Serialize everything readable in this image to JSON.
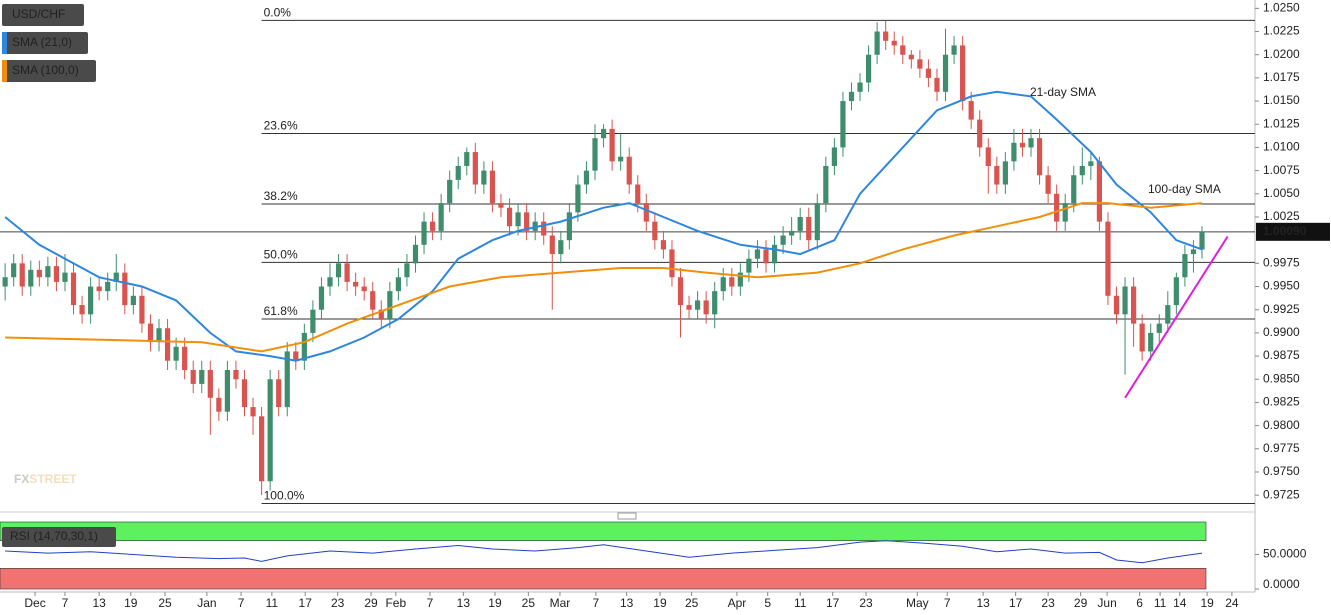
{
  "chart_data": {
    "type": "candlestick",
    "symbol": "USD/CHF",
    "up_color": "#3e8e6e",
    "down_color": "#d9534f",
    "xlim": [
      -0.6,
      146.2
    ],
    "ylim": [
      0.9709,
      1.0259
    ],
    "yticks": [
      {
        "value": 1.025,
        "label": "1.0250"
      },
      {
        "value": 1.0225,
        "label": "1.0225"
      },
      {
        "value": 1.02,
        "label": "1.0200"
      },
      {
        "value": 1.0175,
        "label": "1.0175"
      },
      {
        "value": 1.015,
        "label": "1.0150"
      },
      {
        "value": 1.0125,
        "label": "1.0125"
      },
      {
        "value": 1.01,
        "label": "1.0100"
      },
      {
        "value": 1.0075,
        "label": "1.0075"
      },
      {
        "value": 1.005,
        "label": "1.0050"
      },
      {
        "value": 1.0025,
        "label": "1.0025"
      },
      {
        "value": 0.9975,
        "label": "0.9975"
      },
      {
        "value": 0.995,
        "label": "0.9950"
      },
      {
        "value": 0.9925,
        "label": "0.9925"
      },
      {
        "value": 0.99,
        "label": "0.9900"
      },
      {
        "value": 0.9875,
        "label": "0.9875"
      },
      {
        "value": 0.985,
        "label": "0.9850"
      },
      {
        "value": 0.9825,
        "label": "0.9825"
      },
      {
        "value": 0.98,
        "label": "0.9800"
      },
      {
        "value": 0.9775,
        "label": "0.9775"
      },
      {
        "value": 0.975,
        "label": "0.9750"
      },
      {
        "value": 0.9725,
        "label": "0.9725"
      }
    ],
    "xticks": [
      {
        "value": 3.5,
        "label": "Dec"
      },
      {
        "value": 7,
        "label": "7"
      },
      {
        "value": 11,
        "label": "13"
      },
      {
        "value": 14.7,
        "label": "19"
      },
      {
        "value": 18.7,
        "label": "25"
      },
      {
        "value": 23.6,
        "label": "Jan"
      },
      {
        "value": 27.6,
        "label": "7"
      },
      {
        "value": 31.2,
        "label": "11"
      },
      {
        "value": 35.1,
        "label": "17"
      },
      {
        "value": 38.9,
        "label": "23"
      },
      {
        "value": 42.8,
        "label": "29"
      },
      {
        "value": 45.7,
        "label": "Feb"
      },
      {
        "value": 49.7,
        "label": "7"
      },
      {
        "value": 53.6,
        "label": "13"
      },
      {
        "value": 57.3,
        "label": "19"
      },
      {
        "value": 61.2,
        "label": "25"
      },
      {
        "value": 64.9,
        "label": "Mar"
      },
      {
        "value": 69.1,
        "label": "7"
      },
      {
        "value": 72.7,
        "label": "13"
      },
      {
        "value": 76.6,
        "label": "19"
      },
      {
        "value": 80.3,
        "label": "25"
      },
      {
        "value": 85.6,
        "label": "Apr"
      },
      {
        "value": 89.2,
        "label": "5"
      },
      {
        "value": 93,
        "label": "11"
      },
      {
        "value": 96.8,
        "label": "17"
      },
      {
        "value": 100.7,
        "label": "23"
      },
      {
        "value": 106.7,
        "label": "May"
      },
      {
        "value": 110.2,
        "label": "7"
      },
      {
        "value": 114.4,
        "label": "13"
      },
      {
        "value": 118.2,
        "label": "17"
      },
      {
        "value": 122,
        "label": "23"
      },
      {
        "value": 125.8,
        "label": "29"
      },
      {
        "value": 128.9,
        "label": "Jun"
      },
      {
        "value": 132.7,
        "label": "6"
      },
      {
        "value": 135.1,
        "label": "11"
      },
      {
        "value": 137.4,
        "label": "14"
      },
      {
        "value": 140.6,
        "label": "19"
      },
      {
        "value": 143.5,
        "label": "24"
      }
    ],
    "candles": [
      [
        0.995,
        0.9975,
        0.9935,
        0.996
      ],
      [
        0.996,
        0.9985,
        0.995,
        0.9975
      ],
      [
        0.9975,
        0.9985,
        0.994,
        0.995
      ],
      [
        0.995,
        0.9978,
        0.994,
        0.9968
      ],
      [
        0.9968,
        0.9978,
        0.995,
        0.996
      ],
      [
        0.996,
        0.9982,
        0.995,
        0.9972
      ],
      [
        0.9972,
        0.9982,
        0.9945,
        0.9955
      ],
      [
        0.9955,
        0.9985,
        0.9945,
        0.9965
      ],
      [
        0.9965,
        0.9975,
        0.992,
        0.993
      ],
      [
        0.993,
        0.994,
        0.991,
        0.992
      ],
      [
        0.992,
        0.996,
        0.991,
        0.995
      ],
      [
        0.995,
        0.996,
        0.9935,
        0.9945
      ],
      [
        0.9945,
        0.9965,
        0.9935,
        0.9955
      ],
      [
        0.9955,
        0.9985,
        0.9945,
        0.9965
      ],
      [
        0.9965,
        0.9975,
        0.992,
        0.993
      ],
      [
        0.993,
        0.995,
        0.992,
        0.994
      ],
      [
        0.994,
        0.995,
        0.99,
        0.991
      ],
      [
        0.991,
        0.992,
        0.988,
        0.989
      ],
      [
        0.989,
        0.9915,
        0.988,
        0.9905
      ],
      [
        0.9905,
        0.9915,
        0.986,
        0.987
      ],
      [
        0.987,
        0.9895,
        0.986,
        0.9885
      ],
      [
        0.9885,
        0.9895,
        0.985,
        0.986
      ],
      [
        0.986,
        0.987,
        0.9835,
        0.9845
      ],
      [
        0.9845,
        0.987,
        0.9835,
        0.986
      ],
      [
        0.986,
        0.987,
        0.979,
        0.983
      ],
      [
        0.983,
        0.984,
        0.9805,
        0.9815
      ],
      [
        0.9815,
        0.987,
        0.9805,
        0.986
      ],
      [
        0.986,
        0.987,
        0.984,
        0.985
      ],
      [
        0.985,
        0.986,
        0.981,
        0.982
      ],
      [
        0.982,
        0.983,
        0.979,
        0.981
      ],
      [
        0.981,
        0.982,
        0.9725,
        0.974
      ],
      [
        0.974,
        0.986,
        0.973,
        0.985
      ],
      [
        0.985,
        0.986,
        0.981,
        0.982
      ],
      [
        0.982,
        0.989,
        0.981,
        0.988
      ],
      [
        0.988,
        0.989,
        0.986,
        0.987
      ],
      [
        0.987,
        0.991,
        0.986,
        0.99
      ],
      [
        0.99,
        0.9935,
        0.989,
        0.9925
      ],
      [
        0.9925,
        0.996,
        0.9915,
        0.995
      ],
      [
        0.995,
        0.9975,
        0.994,
        0.996
      ],
      [
        0.996,
        0.9985,
        0.995,
        0.9975
      ],
      [
        0.9975,
        0.9985,
        0.9945,
        0.9955
      ],
      [
        0.9955,
        0.9965,
        0.994,
        0.995
      ],
      [
        0.995,
        0.996,
        0.9935,
        0.9945
      ],
      [
        0.9945,
        0.9955,
        0.9915,
        0.9925
      ],
      [
        0.9925,
        0.9935,
        0.9905,
        0.9915
      ],
      [
        0.9915,
        0.9955,
        0.9905,
        0.9945
      ],
      [
        0.9945,
        0.997,
        0.9935,
        0.996
      ],
      [
        0.996,
        0.9985,
        0.995,
        0.9975
      ],
      [
        0.9975,
        1.0005,
        0.9965,
        0.9995
      ],
      [
        0.9995,
        1.003,
        0.9985,
        1.002
      ],
      [
        1.002,
        1.003,
        1.0,
        1.001
      ],
      [
        1.001,
        1.005,
        1.0,
        1.004
      ],
      [
        1.004,
        1.0075,
        1.003,
        1.0065
      ],
      [
        1.0065,
        1.009,
        1.0055,
        1.008
      ],
      [
        1.008,
        1.01,
        1.007,
        1.0095
      ],
      [
        1.0095,
        1.0105,
        1.005,
        1.006
      ],
      [
        1.006,
        1.0085,
        1.005,
        1.0075
      ],
      [
        1.0075,
        1.0085,
        1.003,
        1.004
      ],
      [
        1.004,
        1.005,
        1.0025,
        1.0035
      ],
      [
        1.0035,
        1.0045,
        1.0005,
        1.0015
      ],
      [
        1.0015,
        1.004,
        1.0005,
        1.003
      ],
      [
        1.003,
        1.004,
        1.0,
        1.001
      ],
      [
        1.001,
        1.003,
        1.0,
        1.002
      ],
      [
        1.002,
        1.003,
        0.9995,
        1.0005
      ],
      [
        1.0005,
        1.0015,
        0.9925,
        0.9985
      ],
      [
        0.9985,
        1.001,
        0.9975,
        1.0
      ],
      [
        1.0,
        1.004,
        0.999,
        1.003
      ],
      [
        1.003,
        1.007,
        1.002,
        1.006
      ],
      [
        1.006,
        1.0085,
        1.005,
        1.0075
      ],
      [
        1.0075,
        1.0125,
        1.0065,
        1.011
      ],
      [
        1.011,
        1.0125,
        1.01,
        1.012
      ],
      [
        1.012,
        1.013,
        1.0075,
        1.0085
      ],
      [
        1.0085,
        1.0115,
        1.0075,
        1.009
      ],
      [
        1.009,
        1.01,
        1.005,
        1.006
      ],
      [
        1.006,
        1.007,
        1.003,
        1.004
      ],
      [
        1.004,
        1.005,
        1.001,
        1.002
      ],
      [
        1.002,
        1.003,
        0.999,
        1.0
      ],
      [
        1.0,
        1.001,
        0.998,
        0.999
      ],
      [
        0.999,
        1.0,
        0.995,
        0.996
      ],
      [
        0.996,
        0.997,
        0.9895,
        0.993
      ],
      [
        0.993,
        0.994,
        0.9915,
        0.9925
      ],
      [
        0.9925,
        0.9945,
        0.9915,
        0.9935
      ],
      [
        0.9935,
        0.9945,
        0.991,
        0.992
      ],
      [
        0.992,
        0.9955,
        0.9905,
        0.9945
      ],
      [
        0.9945,
        0.997,
        0.9935,
        0.996
      ],
      [
        0.996,
        0.997,
        0.994,
        0.995
      ],
      [
        0.995,
        0.9975,
        0.994,
        0.9965
      ],
      [
        0.9965,
        0.999,
        0.9955,
        0.998
      ],
      [
        0.998,
        1.0,
        0.997,
        0.999
      ],
      [
        0.999,
        1.0,
        0.9965,
        0.9975
      ],
      [
        0.9975,
        1.0005,
        0.9965,
        0.9995
      ],
      [
        0.9995,
        1.0015,
        0.9985,
        1.0005
      ],
      [
        1.0005,
        1.0025,
        0.9995,
        1.001
      ],
      [
        1.001,
        1.0035,
        1.0,
        1.0025
      ],
      [
        1.0025,
        1.0035,
        0.999,
        1.0
      ],
      [
        1.0,
        1.005,
        0.999,
        1.004
      ],
      [
        1.004,
        1.009,
        1.003,
        1.008
      ],
      [
        1.008,
        1.011,
        1.007,
        1.01
      ],
      [
        1.01,
        1.016,
        1.009,
        1.015
      ],
      [
        1.015,
        1.017,
        1.014,
        1.016
      ],
      [
        1.016,
        1.018,
        1.015,
        1.017
      ],
      [
        1.017,
        1.021,
        1.016,
        1.02
      ],
      [
        1.02,
        1.0235,
        1.019,
        1.0225
      ],
      [
        1.0225,
        1.0237,
        1.0205,
        1.0215
      ],
      [
        1.0215,
        1.0225,
        1.02,
        1.021
      ],
      [
        1.021,
        1.022,
        1.019,
        1.02
      ],
      [
        1.02,
        1.0205,
        1.0185,
        1.0195
      ],
      [
        1.0195,
        1.0205,
        1.0175,
        1.0185
      ],
      [
        1.0185,
        1.0195,
        1.0165,
        1.0175
      ],
      [
        1.0175,
        1.0185,
        1.015,
        1.016
      ],
      [
        1.016,
        1.0228,
        1.015,
        1.02
      ],
      [
        1.02,
        1.022,
        1.019,
        1.021
      ],
      [
        1.021,
        1.022,
        1.014,
        1.015
      ],
      [
        1.015,
        1.016,
        1.012,
        1.013
      ],
      [
        1.013,
        1.014,
        1.009,
        1.01
      ],
      [
        1.01,
        1.011,
        1.005,
        1.008
      ],
      [
        1.008,
        1.009,
        1.005,
        1.006
      ],
      [
        1.006,
        1.0095,
        1.005,
        1.0085
      ],
      [
        1.0085,
        1.012,
        1.0075,
        1.0105
      ],
      [
        1.0105,
        1.012,
        1.009,
        1.01
      ],
      [
        1.01,
        1.012,
        1.009,
        1.011
      ],
      [
        1.011,
        1.012,
        1.006,
        1.007
      ],
      [
        1.007,
        1.008,
        1.004,
        1.005
      ],
      [
        1.005,
        1.006,
        1.001,
        1.002
      ],
      [
        1.002,
        1.005,
        1.001,
        1.004
      ],
      [
        1.004,
        1.008,
        1.003,
        1.007
      ],
      [
        1.007,
        1.01,
        1.006,
        1.008
      ],
      [
        1.008,
        1.0095,
        1.0065,
        1.0085
      ],
      [
        1.0085,
        1.009,
        1.001,
        1.002
      ],
      [
        1.002,
        1.003,
        0.993,
        0.994
      ],
      [
        0.994,
        0.995,
        0.991,
        0.992
      ],
      [
        0.992,
        0.996,
        0.9855,
        0.995
      ],
      [
        0.995,
        0.996,
        0.9885,
        0.991
      ],
      [
        0.991,
        0.992,
        0.987,
        0.988
      ],
      [
        0.988,
        0.991,
        0.987,
        0.99
      ],
      [
        0.99,
        0.992,
        0.989,
        0.991
      ],
      [
        0.991,
        0.9945,
        0.99,
        0.993
      ],
      [
        0.993,
        0.9965,
        0.992,
        0.996
      ],
      [
        0.996,
        0.9995,
        0.995,
        0.9985
      ],
      [
        0.9985,
        1.0,
        0.9965,
        0.999
      ],
      [
        0.999,
        1.0015,
        0.998,
        1.0009
      ]
    ],
    "indicators": [
      {
        "name": "SMA (21,0)",
        "color": "#2f86dd",
        "annotation": "21-day SMA",
        "x": [
          0,
          4,
          7,
          11,
          16,
          20,
          24,
          27,
          31,
          34,
          38,
          42,
          46,
          50,
          53,
          57,
          60,
          65,
          70,
          73,
          77,
          81,
          86,
          90,
          93,
          97,
          100,
          105,
          109,
          113,
          116,
          120,
          123,
          127,
          130,
          134,
          137,
          140
        ],
        "values": [
          1.0025,
          0.9995,
          0.998,
          0.996,
          0.995,
          0.9935,
          0.99,
          0.988,
          0.9875,
          0.987,
          0.988,
          0.9895,
          0.9915,
          0.9945,
          0.998,
          1.0,
          1.001,
          1.002,
          1.0035,
          1.004,
          1.0025,
          1.001,
          0.9995,
          0.999,
          0.9985,
          1.0,
          1.005,
          1.01,
          1.014,
          1.0155,
          1.016,
          1.0155,
          1.013,
          1.0095,
          1.006,
          1.003,
          1.0,
          0.999
        ]
      },
      {
        "name": "SMA (100,0)",
        "color": "#f0900a",
        "annotation": "100-day SMA",
        "x": [
          0,
          23,
          30,
          35,
          40,
          46,
          52,
          58,
          65,
          72,
          77,
          82,
          88,
          95,
          100,
          105,
          111,
          116,
          121,
          126,
          129,
          134,
          140
        ],
        "values": [
          0.9895,
          0.989,
          0.988,
          0.989,
          0.991,
          0.993,
          0.995,
          0.996,
          0.9965,
          0.997,
          0.997,
          0.9965,
          0.996,
          0.9965,
          0.9975,
          0.999,
          1.0005,
          1.0015,
          1.0025,
          1.004,
          1.004,
          1.0035,
          1.004
        ]
      }
    ],
    "fib_levels": [
      {
        "label": "0.0%",
        "value": 1.0237
      },
      {
        "label": "23.6%",
        "value": 1.0115
      },
      {
        "label": "38.2%",
        "value": 1.0039
      },
      {
        "label": "50.0%",
        "value": 0.9976
      },
      {
        "label": "61.8%",
        "value": 0.9915
      },
      {
        "label": "100.0%",
        "value": 0.9716
      }
    ],
    "trendline": {
      "color": "#e01ee0",
      "x": [
        131,
        143
      ],
      "values": [
        0.983,
        1.0004
      ]
    },
    "last_price": {
      "value": 1.0009,
      "label": "1.00090"
    },
    "watermark": {
      "left": "FX",
      "right": "STREET"
    },
    "rsi": {
      "name": "RSI (14,70,30,1)",
      "color": "#2040c8",
      "ylim": [
        0,
        100
      ],
      "upper": 70,
      "lower": 30,
      "upper_color": "#5ef05e",
      "lower_color": "#f27272",
      "yticks": [
        {
          "value": 50,
          "label": "50.0000"
        },
        {
          "value": 0,
          "label": "0.0000"
        }
      ],
      "x": [
        0,
        5,
        10,
        15,
        20,
        25,
        28,
        30,
        33,
        38,
        43,
        48,
        53,
        57,
        62,
        67,
        70,
        75,
        80,
        85,
        90,
        95,
        100,
        103,
        108,
        112,
        116,
        120,
        124,
        128,
        130,
        133,
        136,
        140
      ],
      "values": [
        55,
        52,
        54,
        50,
        46,
        44,
        45,
        40,
        48,
        55,
        52,
        58,
        63,
        58,
        55,
        60,
        64,
        55,
        46,
        52,
        56,
        60,
        68,
        70,
        66,
        62,
        54,
        58,
        52,
        53,
        42,
        38,
        45,
        52
      ]
    }
  }
}
